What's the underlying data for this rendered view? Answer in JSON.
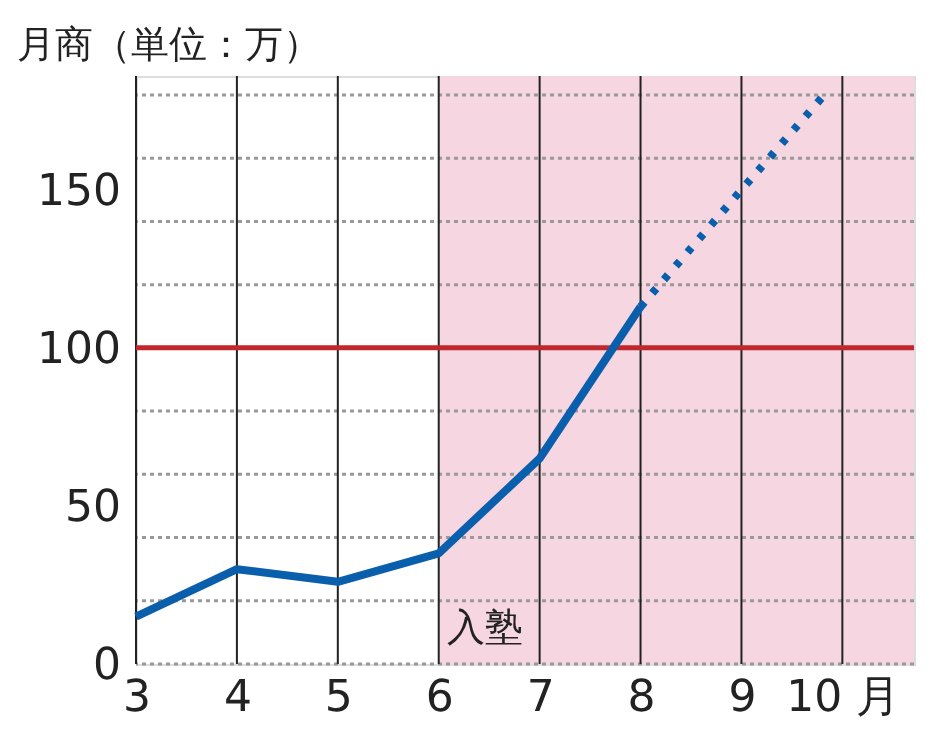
{
  "chart_data": {
    "type": "line",
    "ylabel": "月商（単位：万）",
    "xlim": [
      3,
      10.71
    ],
    "xticks": [
      3,
      4,
      5,
      6,
      7,
      8,
      9,
      {
        "value": 10,
        "label": "10 月"
      }
    ],
    "ylim": [
      0,
      186
    ],
    "yticks": [
      0,
      {
        "value": 20,
        "label": null
      },
      {
        "value": 40,
        "label": null
      },
      {
        "value": 50,
        "label": "50"
      },
      {
        "value": 60,
        "label": null
      },
      {
        "value": 80,
        "label": null
      },
      100,
      {
        "value": 120,
        "label": null
      },
      {
        "value": 140,
        "label": null
      },
      {
        "value": 150,
        "label": "150"
      },
      {
        "value": 160,
        "label": null
      },
      {
        "value": 180,
        "label": null
      }
    ],
    "grid": true,
    "series": [
      {
        "color": "#0a5fac",
        "x": [
          3,
          4,
          5,
          6,
          7,
          8
        ],
        "values": [
          15,
          30,
          26,
          35,
          65,
          113
        ],
        "line_style": "solid"
      },
      {
        "color": "#0a5fac",
        "x": [
          8,
          9,
          9.82
        ],
        "values": [
          113,
          150,
          180
        ],
        "line_style": "dotted"
      }
    ],
    "ref_lines": [
      {
        "axis": "y",
        "value": 100,
        "color": "#c0282d"
      }
    ],
    "bands": [
      {
        "axis": "x",
        "from": 6,
        "to": 10.71,
        "color": "#f5d6e1"
      }
    ],
    "annotations": [
      {
        "text": "入塾",
        "x": 6,
        "y": 5
      }
    ]
  }
}
